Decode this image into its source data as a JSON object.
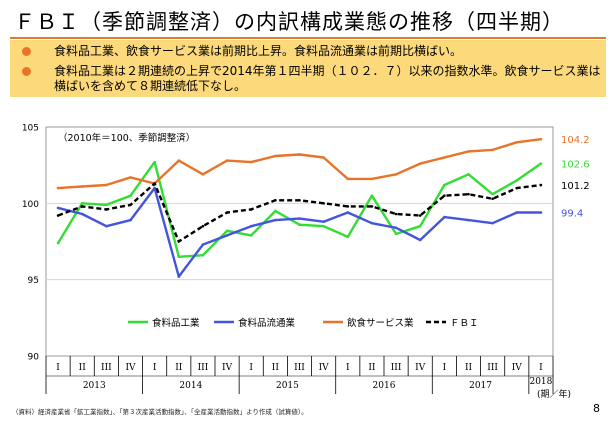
{
  "page": {
    "title": "ＦＢＩ（季節調整済）の内訳構成業態の推移（四半期）",
    "bullets": [
      "食料品工業、飲食サービス業は前期比上昇。食料品流通業は前期比横ばい。",
      "食料品工業は２期連続の上昇で2014年第１四半期（１０２．７）以来の指数水準。飲食サービス業は横ばいを含めて８期連続低下なし。"
    ],
    "footnote": "（資料）経済産業省「鉱工業指数」、「第３次産業活動指数」、「全産業活動指数」より作成（試算値）。",
    "page_number": "8",
    "colors": {
      "accent": "#e07a2c",
      "box": "#fcd97a"
    }
  },
  "chart_data": {
    "type": "line",
    "note": "（2010年＝100、季節調整済）",
    "ylim": [
      90,
      105
    ],
    "yticks": [
      "90",
      "95",
      "100",
      "105"
    ],
    "quarter_labels": [
      "I",
      "II",
      "III",
      "IV",
      "I",
      "II",
      "III",
      "IV",
      "I",
      "II",
      "III",
      "IV",
      "I",
      "II",
      "III",
      "IV",
      "I",
      "II",
      "III",
      "IV",
      "I"
    ],
    "years": [
      {
        "label": "2013",
        "span": 4
      },
      {
        "label": "2014",
        "span": 4
      },
      {
        "label": "2015",
        "span": 4
      },
      {
        "label": "2016",
        "span": 4
      },
      {
        "label": "2017",
        "span": 4
      },
      {
        "label": "2018",
        "span": 1
      }
    ],
    "period_unit_label": "(期／年)",
    "series": [
      {
        "name": "食料品工業",
        "color": "#33dd33",
        "dash": false,
        "end_label": "102.6",
        "values": [
          97.4,
          100.0,
          99.9,
          100.5,
          102.7,
          96.5,
          96.6,
          98.2,
          97.9,
          99.5,
          98.6,
          98.5,
          97.8,
          100.5,
          98.0,
          98.5,
          101.2,
          101.9,
          100.6,
          101.5,
          102.6
        ]
      },
      {
        "name": "食料品流通業",
        "color": "#4455dd",
        "dash": false,
        "end_label": "99.4",
        "values": [
          99.7,
          99.3,
          98.5,
          98.9,
          101.0,
          95.2,
          97.3,
          97.9,
          98.5,
          98.9,
          99.0,
          98.8,
          99.4,
          98.7,
          98.4,
          97.6,
          99.1,
          98.9,
          98.7,
          99.4,
          99.4
        ]
      },
      {
        "name": "飲食サービス業",
        "color": "#e8742a",
        "dash": false,
        "end_label": "104.2",
        "values": [
          101.0,
          101.1,
          101.2,
          101.7,
          101.3,
          102.8,
          101.9,
          102.8,
          102.7,
          103.1,
          103.2,
          103.0,
          101.6,
          101.6,
          101.9,
          102.6,
          103.0,
          103.4,
          103.5,
          104.0,
          104.2
        ]
      },
      {
        "name": "ＦＢＩ",
        "color": "#000000",
        "dash": true,
        "end_label": "101.2",
        "values": [
          99.2,
          99.8,
          99.6,
          99.9,
          101.3,
          97.5,
          98.5,
          99.4,
          99.6,
          100.2,
          100.2,
          100.0,
          99.8,
          99.8,
          99.3,
          99.2,
          100.5,
          100.6,
          100.3,
          101.0,
          101.2
        ]
      }
    ]
  }
}
